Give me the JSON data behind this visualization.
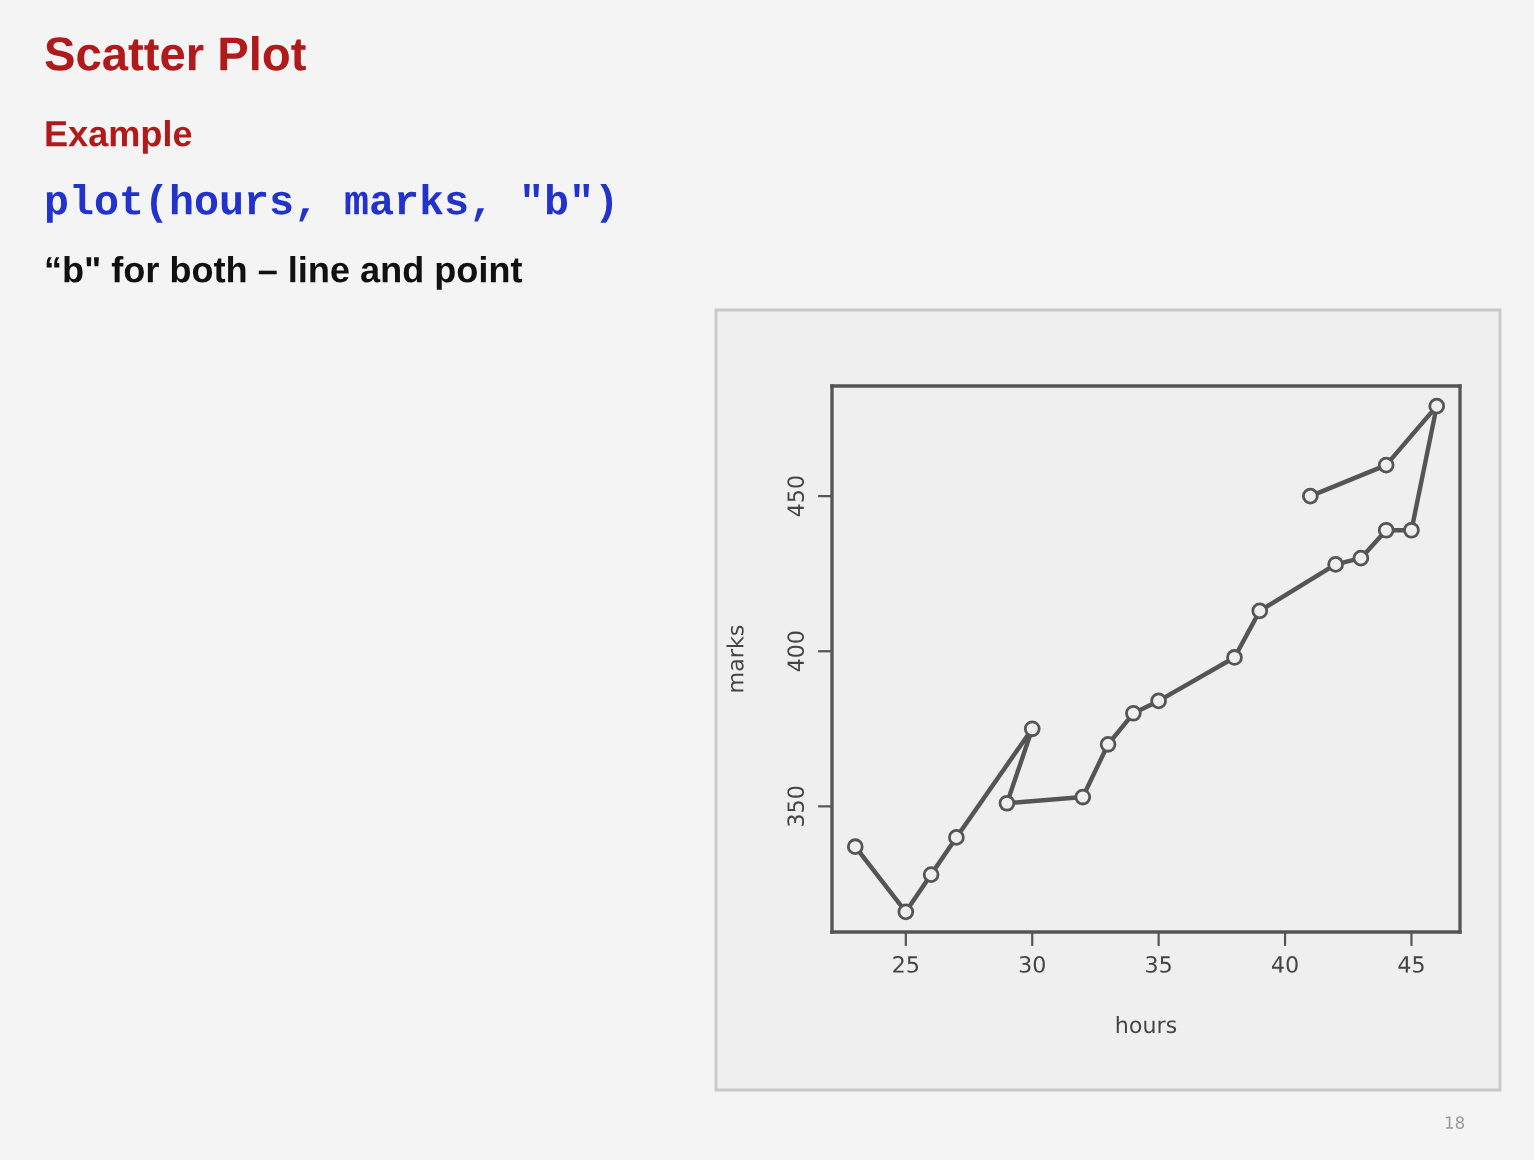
{
  "chart_data": {
    "type": "line",
    "title": "Scatter Plot",
    "subtitle": "Example",
    "annotations": [
      "plot(hours, marks, \"b\")",
      "“b\" for both – line and point",
      "18"
    ],
    "xlabel": "hours",
    "ylabel": "marks",
    "x": [
      23,
      25,
      26,
      27,
      30,
      29,
      32,
      33,
      34,
      35,
      38,
      39,
      42,
      43,
      44,
      45,
      46,
      44,
      41
    ],
    "series": [
      {
        "color": "#555555",
        "values": [
          337,
          316,
          328,
          340,
          375,
          351,
          353,
          370,
          380,
          384,
          398,
          413,
          428,
          430,
          439,
          439,
          479,
          460,
          450
        ]
      }
    ],
    "xlim": [
      22.08,
      46.92
    ],
    "ylim": [
      309.5,
      485.5
    ],
    "xticks": [
      25,
      30,
      35,
      40,
      45
    ],
    "yticks": [
      350,
      400,
      450
    ],
    "marker": "circle",
    "line_style": "solid",
    "grid": false
  }
}
